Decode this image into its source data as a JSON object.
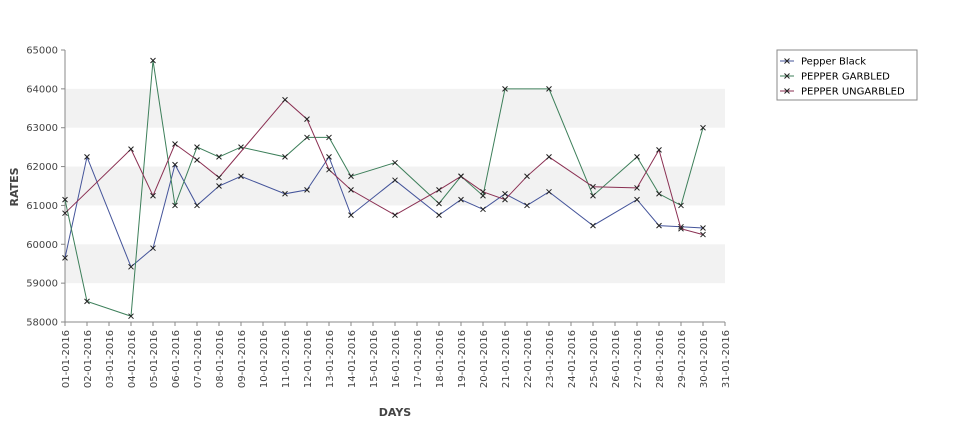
{
  "chart_data": {
    "type": "line",
    "title": "",
    "xlabel": "DAYS",
    "ylabel": "RATES",
    "ylim": [
      58000,
      65000
    ],
    "yticks": [
      "58000",
      "59000",
      "60000",
      "61000",
      "62000",
      "63000",
      "64000",
      "65000"
    ],
    "x_tick_labels": [
      "01-01-2016",
      "02-01-2016",
      "03-01-2016",
      "04-01-2016",
      "05-01-2016",
      "06-01-2016",
      "07-01-2016",
      "08-01-2016",
      "09-01-2016",
      "10-01-2016",
      "11-01-2016",
      "12-01-2016",
      "13-01-2016",
      "14-01-2016",
      "15-01-2016",
      "16-01-2016",
      "17-01-2016",
      "18-01-2016",
      "19-01-2016",
      "20-01-2016",
      "21-01-2016",
      "22-01-2016",
      "23-01-2016",
      "24-01-2016",
      "25-01-2016",
      "26-01-2016",
      "27-01-2016",
      "28-01-2016",
      "29-01-2016",
      "30-01-2016",
      "31-01-2016"
    ],
    "grid": "alternating horizontal bands",
    "legend_position": "top-right",
    "series": [
      {
        "name": "Pepper Black",
        "color": "#44549a",
        "points": [
          {
            "x": "01-01-2016",
            "y": 59650
          },
          {
            "x": "02-01-2016",
            "y": 62250
          },
          {
            "x": "04-01-2016",
            "y": 59420
          },
          {
            "x": "05-01-2016",
            "y": 59900
          },
          {
            "x": "06-01-2016",
            "y": 62050
          },
          {
            "x": "07-01-2016",
            "y": 61000
          },
          {
            "x": "08-01-2016",
            "y": 61500
          },
          {
            "x": "09-01-2016",
            "y": 61750
          },
          {
            "x": "11-01-2016",
            "y": 61300
          },
          {
            "x": "12-01-2016",
            "y": 61400
          },
          {
            "x": "13-01-2016",
            "y": 62250
          },
          {
            "x": "14-01-2016",
            "y": 60750
          },
          {
            "x": "16-01-2016",
            "y": 61650
          },
          {
            "x": "18-01-2016",
            "y": 60750
          },
          {
            "x": "19-01-2016",
            "y": 61150
          },
          {
            "x": "20-01-2016",
            "y": 60900
          },
          {
            "x": "21-01-2016",
            "y": 61300
          },
          {
            "x": "22-01-2016",
            "y": 61000
          },
          {
            "x": "23-01-2016",
            "y": 61350
          },
          {
            "x": "25-01-2016",
            "y": 60480
          },
          {
            "x": "27-01-2016",
            "y": 61150
          },
          {
            "x": "28-01-2016",
            "y": 60480
          },
          {
            "x": "29-01-2016",
            "y": 60450
          },
          {
            "x": "30-01-2016",
            "y": 60420
          }
        ]
      },
      {
        "name": "PEPPER GARBLED",
        "color": "#3d7f5a",
        "points": [
          {
            "x": "01-01-2016",
            "y": 61150
          },
          {
            "x": "02-01-2016",
            "y": 58530
          },
          {
            "x": "04-01-2016",
            "y": 58150
          },
          {
            "x": "05-01-2016",
            "y": 64730
          },
          {
            "x": "06-01-2016",
            "y": 61000
          },
          {
            "x": "07-01-2016",
            "y": 62500
          },
          {
            "x": "08-01-2016",
            "y": 62250
          },
          {
            "x": "09-01-2016",
            "y": 62500
          },
          {
            "x": "11-01-2016",
            "y": 62250
          },
          {
            "x": "12-01-2016",
            "y": 62750
          },
          {
            "x": "13-01-2016",
            "y": 62750
          },
          {
            "x": "14-01-2016",
            "y": 61750
          },
          {
            "x": "16-01-2016",
            "y": 62100
          },
          {
            "x": "18-01-2016",
            "y": 61050
          },
          {
            "x": "19-01-2016",
            "y": 61750
          },
          {
            "x": "20-01-2016",
            "y": 61250
          },
          {
            "x": "21-01-2016",
            "y": 64000
          },
          {
            "x": "23-01-2016",
            "y": 64000
          },
          {
            "x": "25-01-2016",
            "y": 61250
          },
          {
            "x": "27-01-2016",
            "y": 62250
          },
          {
            "x": "28-01-2016",
            "y": 61300
          },
          {
            "x": "29-01-2016",
            "y": 61000
          },
          {
            "x": "30-01-2016",
            "y": 63000
          }
        ]
      },
      {
        "name": "PEPPER UNGARBLED",
        "color": "#8a2f52",
        "points": [
          {
            "x": "01-01-2016",
            "y": 60800
          },
          {
            "x": "04-01-2016",
            "y": 62450
          },
          {
            "x": "05-01-2016",
            "y": 61250
          },
          {
            "x": "06-01-2016",
            "y": 62580
          },
          {
            "x": "07-01-2016",
            "y": 62170
          },
          {
            "x": "08-01-2016",
            "y": 61720
          },
          {
            "x": "11-01-2016",
            "y": 63720
          },
          {
            "x": "12-01-2016",
            "y": 63220
          },
          {
            "x": "13-01-2016",
            "y": 61920
          },
          {
            "x": "14-01-2016",
            "y": 61400
          },
          {
            "x": "16-01-2016",
            "y": 60750
          },
          {
            "x": "18-01-2016",
            "y": 61400
          },
          {
            "x": "19-01-2016",
            "y": 61750
          },
          {
            "x": "20-01-2016",
            "y": 61350
          },
          {
            "x": "21-01-2016",
            "y": 61150
          },
          {
            "x": "22-01-2016",
            "y": 61750
          },
          {
            "x": "23-01-2016",
            "y": 62250
          },
          {
            "x": "25-01-2016",
            "y": 61480
          },
          {
            "x": "27-01-2016",
            "y": 61450
          },
          {
            "x": "28-01-2016",
            "y": 62430
          },
          {
            "x": "29-01-2016",
            "y": 60400
          },
          {
            "x": "30-01-2016",
            "y": 60250
          }
        ]
      }
    ]
  }
}
